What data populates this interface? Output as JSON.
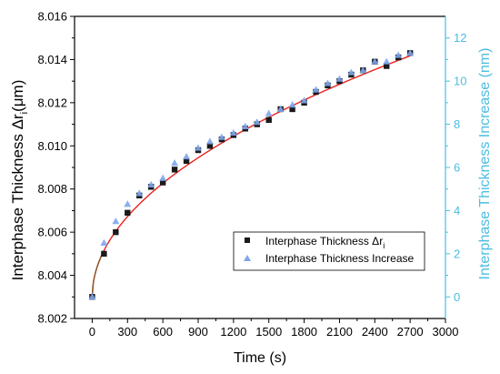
{
  "chart_data": {
    "type": "scatter",
    "colors": {
      "left_axis": "#000000",
      "right_axis": "#4bbde0",
      "square_marker": "#1a1a1a",
      "triangle_marker": "#7fa6ec",
      "fit_line": "#e8231e",
      "fit_line_start": "#8b5a2b"
    },
    "xlabel": "Time (s)",
    "ylabel_left": "Interphase Thickness Δr",
    "ylabel_left_subscript": "i",
    "ylabel_left_unit": "(μm)",
    "ylabel_right": "Interphase Thickness Increase (nm)",
    "xlim": [
      -150,
      3000
    ],
    "ylim_left": [
      8.002,
      8.016
    ],
    "ylim_right": [
      -1.0,
      13.0
    ],
    "xticks": [
      0,
      300,
      600,
      900,
      1200,
      1500,
      1800,
      2100,
      2400,
      2700,
      3000
    ],
    "yticks_left": [
      "8.002",
      "8.004",
      "8.006",
      "8.008",
      "8.010",
      "8.012",
      "8.014",
      "8.016"
    ],
    "yticks_right": [
      "0",
      "2",
      "4",
      "6",
      "8",
      "10",
      "12"
    ],
    "legend_position": "bottom-right",
    "series": [
      {
        "name": "Interphase Thickness Δr",
        "name_subscript": "i",
        "axis": "left",
        "marker": "square",
        "x": [
          0,
          100,
          200,
          300,
          400,
          500,
          600,
          700,
          800,
          900,
          1000,
          1100,
          1200,
          1300,
          1400,
          1500,
          1600,
          1700,
          1800,
          1900,
          2000,
          2100,
          2200,
          2300,
          2400,
          2500,
          2600,
          2700
        ],
        "y": [
          8.003,
          8.005,
          8.006,
          8.0069,
          8.0077,
          8.0081,
          8.0083,
          8.0089,
          8.0093,
          8.0098,
          8.01,
          8.0103,
          8.0105,
          8.0108,
          8.011,
          8.0112,
          8.0117,
          8.0117,
          8.012,
          8.0125,
          8.0128,
          8.013,
          8.0133,
          8.0135,
          8.0139,
          8.0137,
          8.0141,
          8.0143
        ]
      },
      {
        "name": "Interphase Thickness Increase",
        "axis": "right",
        "marker": "triangle",
        "x": [
          0,
          100,
          200,
          300,
          400,
          500,
          600,
          700,
          800,
          900,
          1000,
          1100,
          1200,
          1300,
          1400,
          1500,
          1600,
          1700,
          1800,
          1900,
          2000,
          2100,
          2200,
          2300,
          2400,
          2500,
          2600,
          2700
        ],
        "y": [
          0.0,
          2.5,
          3.5,
          4.3,
          4.8,
          5.2,
          5.5,
          6.2,
          6.5,
          6.9,
          7.2,
          7.4,
          7.6,
          7.9,
          8.1,
          8.5,
          8.7,
          8.9,
          9.1,
          9.6,
          9.9,
          10.1,
          10.4,
          10.5,
          10.9,
          10.9,
          11.2,
          11.3
        ]
      }
    ]
  }
}
